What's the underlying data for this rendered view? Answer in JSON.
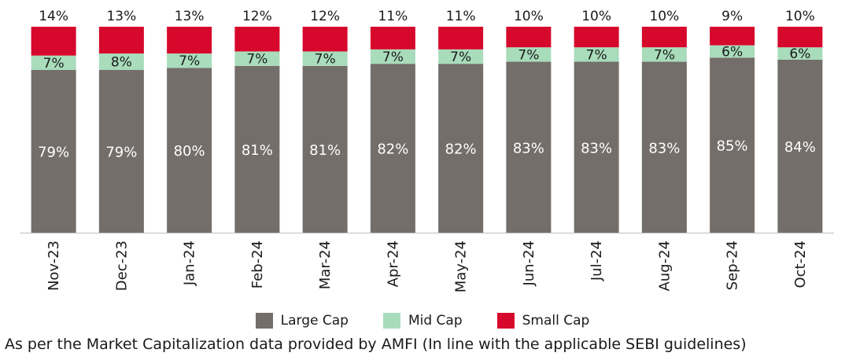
{
  "chart_data": {
    "type": "bar",
    "stacked": true,
    "categories": [
      "Nov-23",
      "Dec-23",
      "Jan-24",
      "Feb-24",
      "Mar-24",
      "Apr-24",
      "May-24",
      "Jun-24",
      "Jul-24",
      "Aug-24",
      "Sep-24",
      "Oct-24"
    ],
    "series": [
      {
        "name": "Large Cap",
        "color": "#736e6a",
        "values": [
          79,
          79,
          80,
          81,
          81,
          82,
          82,
          83,
          83,
          83,
          85,
          84
        ]
      },
      {
        "name": "Mid Cap",
        "color": "#a8dcbb",
        "values": [
          7,
          8,
          7,
          7,
          7,
          7,
          7,
          7,
          7,
          7,
          6,
          6
        ]
      },
      {
        "name": "Small Cap",
        "color": "#d6082b",
        "values": [
          14,
          13,
          13,
          12,
          12,
          11,
          11,
          10,
          10,
          10,
          9,
          10
        ]
      }
    ],
    "value_suffix": "%",
    "ylim": [
      0,
      100
    ]
  },
  "footnote": "As per the Market Capitalization data provided by AMFI (In line with the applicable SEBI guidelines)"
}
